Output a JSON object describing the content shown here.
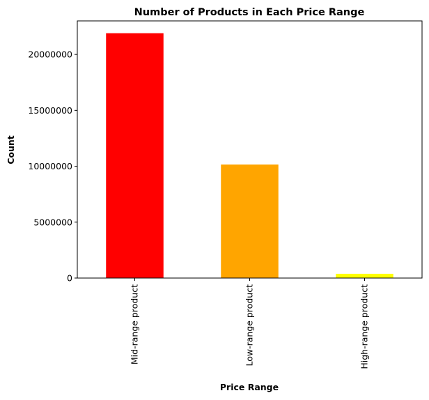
{
  "chart_data": {
    "type": "bar",
    "title": "Number of Products in Each Price Range",
    "xlabel": "Price Range",
    "ylabel": "Count",
    "categories": [
      "Mid-range product",
      "Low-range product",
      "High-range product"
    ],
    "values": [
      21900000,
      10150000,
      380000
    ],
    "colors": [
      "#ff0000",
      "#ffa500",
      "#ffff00"
    ],
    "ylim": [
      0,
      23000000
    ],
    "yticks": [
      0,
      5000000,
      10000000,
      15000000,
      20000000
    ],
    "ytick_labels": [
      "0",
      "5000000",
      "10000000",
      "15000000",
      "20000000"
    ],
    "grid": false,
    "legend": "none"
  }
}
